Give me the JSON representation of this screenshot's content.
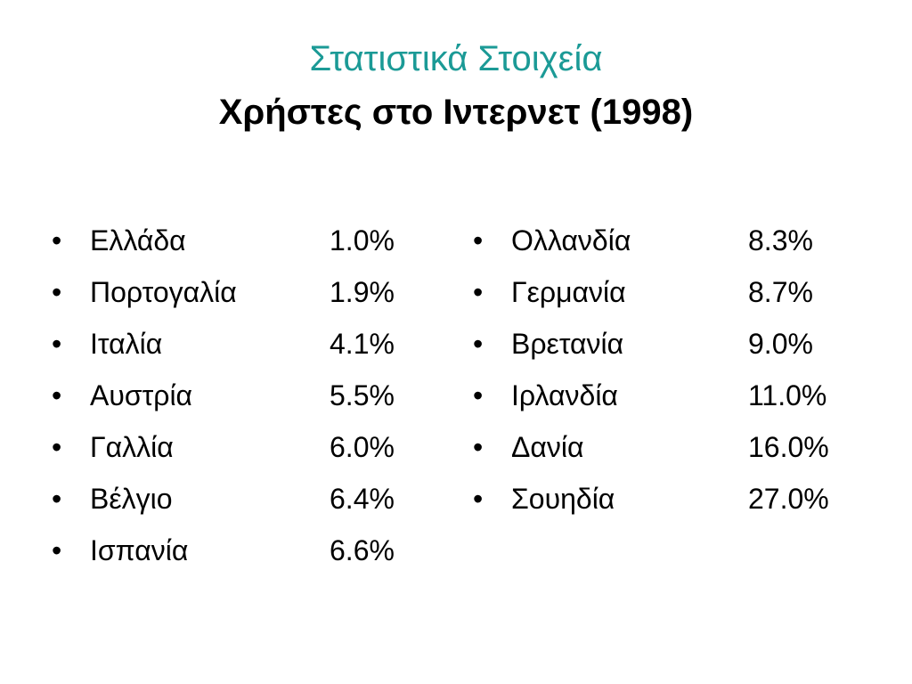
{
  "slide": {
    "title": "Στατιστικά Στοιχεία",
    "subtitle": "Χρήστες στο Ιντερνετ (1998)",
    "title_color": "#1b9a96",
    "bullet_symbol": "•"
  },
  "left_column": [
    {
      "country": "Ελλάδα",
      "value": "1.0%"
    },
    {
      "country": "Πορτογαλία",
      "value": "1.9%"
    },
    {
      "country": "Ιταλία",
      "value": "4.1%"
    },
    {
      "country": "Αυστρία",
      "value": "5.5%"
    },
    {
      "country": "Γαλλία",
      "value": "6.0%"
    },
    {
      "country": "Βέλγιο",
      "value": "6.4%"
    },
    {
      "country": "Ισπανία",
      "value": "6.6%"
    }
  ],
  "right_column": [
    {
      "country": "Ολλανδία",
      "value": "8.3%"
    },
    {
      "country": "Γερμανία",
      "value": "8.7%"
    },
    {
      "country": "Βρετανία",
      "value": "9.0%"
    },
    {
      "country": "Ιρλανδία",
      "value": "11.0%"
    },
    {
      "country": "Δανία",
      "value": "16.0%"
    },
    {
      "country": "Σουηδία",
      "value": "27.0%"
    }
  ]
}
